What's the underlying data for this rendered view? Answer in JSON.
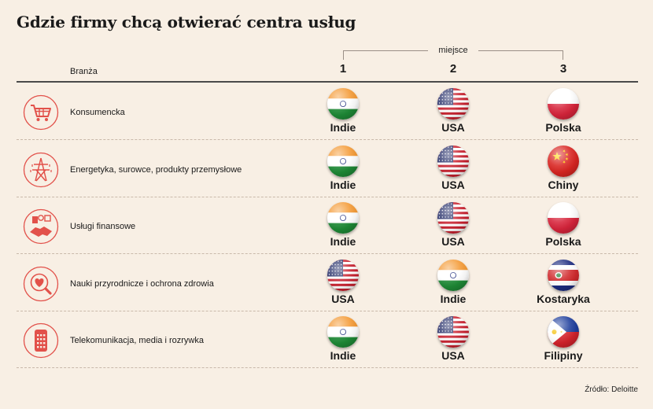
{
  "title": "Gdzie firmy chcą otwierać centra usług",
  "header": {
    "miejsce": "miejsce",
    "branza": "Branża",
    "ranks": [
      "1",
      "2",
      "3"
    ]
  },
  "colors": {
    "background": "#f8efe4",
    "icon_accent": "#e2514a"
  },
  "rows": [
    {
      "industry": "Konsumencka",
      "icon": "shopping-cart-icon",
      "places": [
        {
          "country": "Indie",
          "flag": "india-flag-icon"
        },
        {
          "country": "USA",
          "flag": "usa-flag-icon"
        },
        {
          "country": "Polska",
          "flag": "poland-flag-icon"
        }
      ]
    },
    {
      "industry": "Energetyka, surowce, produkty przemysłowe",
      "icon": "power-pylon-icon",
      "places": [
        {
          "country": "Indie",
          "flag": "india-flag-icon"
        },
        {
          "country": "USA",
          "flag": "usa-flag-icon"
        },
        {
          "country": "Chiny",
          "flag": "china-flag-icon"
        }
      ]
    },
    {
      "industry": "Usługi finansowe",
      "icon": "handshake-money-icon",
      "places": [
        {
          "country": "Indie",
          "flag": "india-flag-icon"
        },
        {
          "country": "USA",
          "flag": "usa-flag-icon"
        },
        {
          "country": "Polska",
          "flag": "poland-flag-icon"
        }
      ]
    },
    {
      "industry": "Nauki przyrodnicze i ochrona zdrowia",
      "icon": "heart-magnifier-icon",
      "places": [
        {
          "country": "USA",
          "flag": "usa-flag-icon"
        },
        {
          "country": "Indie",
          "flag": "india-flag-icon"
        },
        {
          "country": "Kostaryka",
          "flag": "costa-rica-flag-icon"
        }
      ]
    },
    {
      "industry": "Telekomunikacja, media i rozrywka",
      "icon": "phone-keypad-icon",
      "places": [
        {
          "country": "Indie",
          "flag": "india-flag-icon"
        },
        {
          "country": "USA",
          "flag": "usa-flag-icon"
        },
        {
          "country": "Filipiny",
          "flag": "philippines-flag-icon"
        }
      ]
    }
  ],
  "source": "Źródło: Deloitte"
}
